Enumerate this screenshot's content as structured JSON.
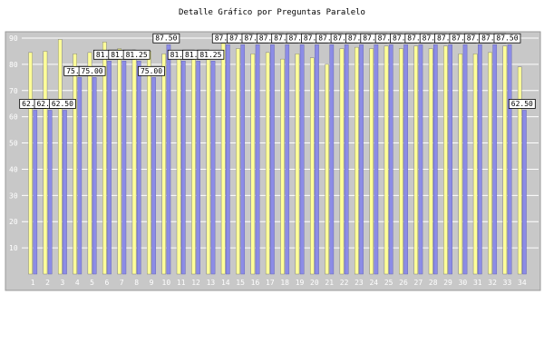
{
  "chart_data": {
    "type": "bar",
    "title": "Detalle Gráfico por Preguntas Paralelo",
    "categories": [
      "1",
      "2",
      "3",
      "4",
      "5",
      "6",
      "7",
      "8",
      "9",
      "10",
      "11",
      "12",
      "13",
      "14",
      "15",
      "16",
      "17",
      "18",
      "19",
      "20",
      "21",
      "22",
      "23",
      "24",
      "25",
      "26",
      "27",
      "28",
      "29",
      "30",
      "31",
      "32",
      "33",
      "34"
    ],
    "ylim": [
      0,
      90
    ],
    "yticks": [
      10,
      20,
      30,
      40,
      50,
      60,
      70,
      80,
      90
    ],
    "grid": true,
    "series": [
      {
        "values": [
          62.5,
          62.5,
          62.5,
          75.0,
          75.0,
          81.25,
          81.25,
          81.25,
          75.0,
          87.5,
          81.25,
          81.25,
          81.25,
          87.5,
          87.5,
          87.5,
          87.5,
          87.5,
          87.5,
          87.5,
          87.5,
          87.5,
          87.5,
          87.5,
          87.5,
          87.5,
          87.5,
          87.5,
          87.5,
          87.5,
          87.5,
          87.5,
          87.5,
          62.5
        ],
        "color": "#8c8ce6"
      },
      {
        "values": [
          84.5,
          85.0,
          89.5,
          84.0,
          84.5,
          88.5,
          86.0,
          85.5,
          85.0,
          84.0,
          82.0,
          84.0,
          82.0,
          88.0,
          86.0,
          84.0,
          84.5,
          82.0,
          84.0,
          82.5,
          80.0,
          86.0,
          86.5,
          86.0,
          87.0,
          86.0,
          87.0,
          86.0,
          87.0,
          84.0,
          84.0,
          84.5,
          87.0,
          79.0
        ],
        "color": "#ffff99"
      }
    ],
    "data_labels": [
      "62.50",
      "62.50",
      "62.50",
      "75.00",
      "75.00",
      "81.25",
      "81.25",
      "81.25",
      "75.00",
      "87.50",
      "81.25",
      "81.25",
      "81.25",
      "87.50",
      "87.50",
      "87.50",
      "87.50",
      "87.50",
      "87.50",
      "87.50",
      "87.50",
      "87.50",
      "87.50",
      "87.50",
      "87.50",
      "87.50",
      "87.50",
      "87.50",
      "87.50",
      "87.50",
      "87.50",
      "87.50",
      "87.50",
      "62.50"
    ],
    "colors": {
      "plot_background": "#c8c8c8",
      "grid": "#ffffff",
      "label_box": "#ffffff",
      "label_text": "#000000"
    }
  }
}
